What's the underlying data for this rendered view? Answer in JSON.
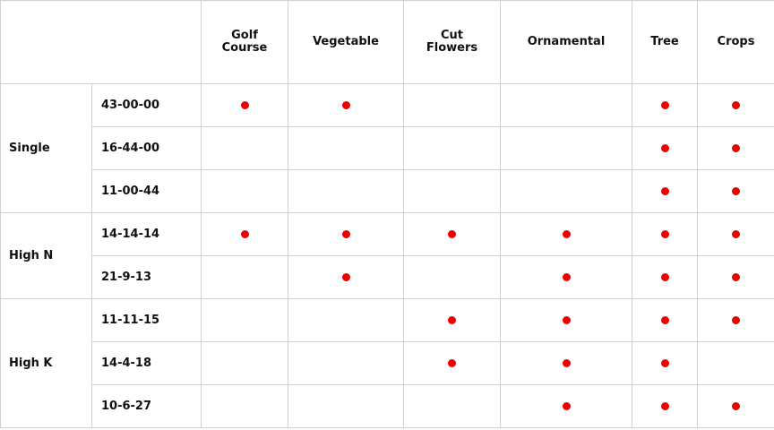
{
  "table": {
    "columns": [
      "Golf Course",
      "Vegetable",
      "Cut Flowers",
      "Ornamental",
      "Tree",
      "Crops"
    ],
    "groups": [
      {
        "name": "Single",
        "rows": [
          {
            "formula": "43-00-00",
            "marks": [
              true,
              true,
              false,
              false,
              true,
              true
            ]
          },
          {
            "formula": "16-44-00",
            "marks": [
              false,
              false,
              false,
              false,
              true,
              true
            ]
          },
          {
            "formula": "11-00-44",
            "marks": [
              false,
              false,
              false,
              false,
              true,
              true
            ]
          }
        ]
      },
      {
        "name": "High N",
        "rows": [
          {
            "formula": "14-14-14",
            "marks": [
              true,
              true,
              true,
              true,
              true,
              true
            ]
          },
          {
            "formula": "21-9-13",
            "marks": [
              false,
              true,
              false,
              true,
              true,
              true
            ]
          }
        ]
      },
      {
        "name": "High K",
        "rows": [
          {
            "formula": "11-11-15",
            "marks": [
              false,
              false,
              true,
              true,
              true,
              true
            ]
          },
          {
            "formula": "14-4-18",
            "marks": [
              false,
              false,
              true,
              true,
              true,
              false
            ]
          },
          {
            "formula": "10-6-27",
            "marks": [
              false,
              false,
              false,
              true,
              true,
              true
            ]
          }
        ]
      }
    ]
  }
}
